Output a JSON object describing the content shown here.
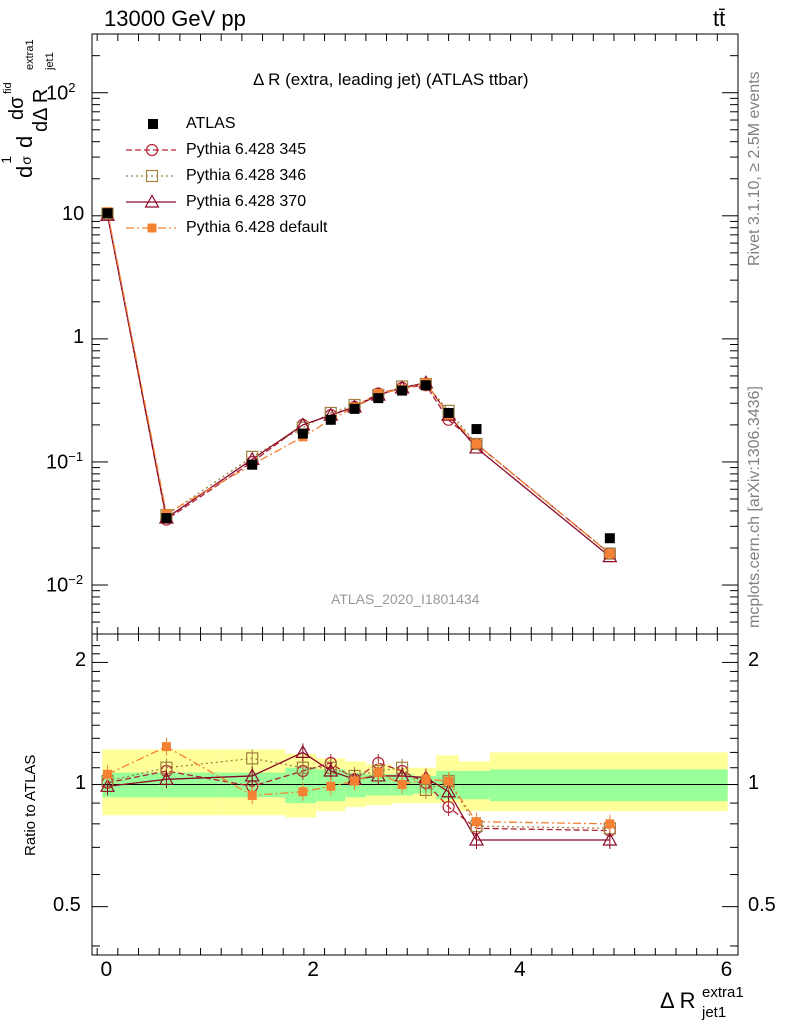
{
  "header": {
    "left": "13000 GeV pp",
    "right": "tt̄"
  },
  "main_title": "Δ R (extra, leading jet) (ATLAS ttbar)",
  "y_axis_label": {
    "text": "d²σ/dΔ R (extra1, jet1)",
    "parts": [
      "1",
      "σ",
      "d",
      "d",
      "dσ",
      "fid",
      "dΔ R",
      "jet1",
      "extra1"
    ]
  },
  "ratio_y_label": "Ratio to ATLAS",
  "x_axis_label": {
    "main": "Δ R",
    "sup": "extra1",
    "sub": "jet1"
  },
  "watermark": "ATLAS_2020_I1801434",
  "side_text_top": "Rivet 3.1.10, ≥ 2.5M events",
  "side_text_bottom": "mcplots.cern.ch [arXiv:1306.3436]",
  "legend": [
    {
      "label": "ATLAS"
    },
    {
      "label": "Pythia 6.428 345"
    },
    {
      "label": "Pythia 6.428 346"
    },
    {
      "label": "Pythia 6.428 370"
    },
    {
      "label": "Pythia 6.428 default"
    }
  ],
  "chart_data": {
    "type": "line",
    "x_range": [
      -0.15,
      6.1
    ],
    "y_range_log": [
      0.004,
      300
    ],
    "ratio_y_range": [
      0.38,
      2.35
    ],
    "x_ticks": [
      "0",
      "2",
      "4",
      "6"
    ],
    "y_ticks": [
      "10^-2",
      "10^-1",
      "1",
      "10",
      "10^2"
    ],
    "ratio_ticks": [
      "0.5",
      "1",
      "2"
    ],
    "x": [
      0.0,
      0.57,
      1.4,
      1.89,
      2.16,
      2.39,
      2.62,
      2.85,
      3.08,
      3.3,
      3.57,
      4.86
    ],
    "atlas": [
      10.5,
      0.035,
      0.095,
      0.17,
      0.22,
      0.27,
      0.33,
      0.38,
      0.42,
      0.25,
      0.185,
      0.024
    ],
    "band_edges": [
      -0.05,
      0.55,
      1.08,
      1.72,
      2.02,
      2.3,
      2.5,
      2.75,
      2.96,
      3.18,
      3.4,
      3.7,
      6.0
    ],
    "band_green": [
      [
        0.93,
        1.07
      ],
      [
        0.93,
        1.07
      ],
      [
        0.93,
        1.07
      ],
      [
        0.9,
        1.1
      ],
      [
        0.91,
        1.09
      ],
      [
        0.93,
        1.07
      ],
      [
        0.94,
        1.06
      ],
      [
        0.94,
        1.06
      ],
      [
        0.95,
        1.05
      ],
      [
        0.92,
        1.08
      ],
      [
        0.92,
        1.08
      ],
      [
        0.91,
        1.09
      ]
    ],
    "band_yellow": [
      [
        0.84,
        1.22
      ],
      [
        0.84,
        1.22
      ],
      [
        0.84,
        1.22
      ],
      [
        0.83,
        1.19
      ],
      [
        0.86,
        1.16
      ],
      [
        0.88,
        1.14
      ],
      [
        0.89,
        1.12
      ],
      [
        0.9,
        1.1
      ],
      [
        0.9,
        1.1
      ],
      [
        0.9,
        1.18
      ],
      [
        0.86,
        1.14
      ],
      [
        0.86,
        1.2
      ]
    ],
    "series": [
      {
        "name": "Pythia 6.428 345",
        "color": "#b22234",
        "marker": "circle-open",
        "dash": "6,3",
        "values": [
          10.3,
          0.034,
          0.1,
          0.2,
          0.24,
          0.28,
          0.36,
          0.4,
          0.42,
          0.22,
          0.14,
          0.018
        ],
        "ratio": [
          1.01,
          1.08,
          0.99,
          1.08,
          1.13,
          1.03,
          1.13,
          1.08,
          1.01,
          0.88,
          0.78,
          0.77
        ]
      },
      {
        "name": "Pythia 6.428 346",
        "color": "#a08040",
        "marker": "square-open",
        "dash": "2,3",
        "values": [
          10.4,
          0.037,
          0.11,
          0.19,
          0.25,
          0.29,
          0.35,
          0.41,
          0.43,
          0.26,
          0.14,
          0.018
        ],
        "ratio": [
          1.02,
          1.1,
          1.16,
          1.1,
          1.1,
          1.05,
          1.08,
          1.1,
          0.97,
          1.02,
          0.79,
          0.78
        ]
      },
      {
        "name": "Pythia 6.428 370",
        "color": "#8b0a28",
        "marker": "triangle-open",
        "dash": "",
        "values": [
          10.1,
          0.035,
          0.105,
          0.2,
          0.24,
          0.28,
          0.35,
          0.4,
          0.44,
          0.24,
          0.13,
          0.017
        ],
        "ratio": [
          0.99,
          1.03,
          1.05,
          1.2,
          1.08,
          1.03,
          1.05,
          1.05,
          1.04,
          0.96,
          0.73,
          0.73
        ]
      },
      {
        "name": "Pythia 6.428 default",
        "color": "#f58233",
        "marker": "square-filled",
        "dash": "8,3,2,3",
        "values": [
          10.8,
          0.038,
          0.095,
          0.16,
          0.22,
          0.28,
          0.36,
          0.39,
          0.44,
          0.24,
          0.14,
          0.018
        ],
        "ratio": [
          1.06,
          1.24,
          0.94,
          0.96,
          0.99,
          1.02,
          1.07,
          1.0,
          1.03,
          1.02,
          0.81,
          0.8
        ]
      }
    ]
  }
}
